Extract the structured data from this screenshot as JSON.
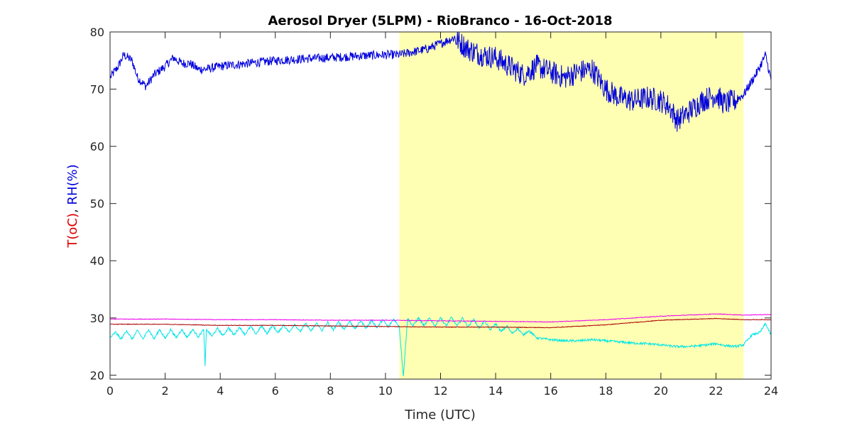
{
  "chart_data": {
    "type": "line",
    "title": "Aerosol Dryer (5LPM) - RioBranco - 16-Oct-2018",
    "xlabel": "Time (UTC)",
    "ylabel_parts": [
      {
        "text": "T(oC)",
        "color": "#dd0000"
      },
      {
        "text": ", ",
        "color": "#262626"
      },
      {
        "text": "RH(%)",
        "color": "#0000dd"
      }
    ],
    "xlim": [
      0,
      24
    ],
    "ylim": [
      19.3,
      80
    ],
    "xticks": [
      0,
      2,
      4,
      6,
      8,
      10,
      12,
      14,
      16,
      18,
      20,
      22,
      24
    ],
    "yticks": [
      20,
      30,
      40,
      50,
      60,
      70,
      80
    ],
    "grid": false,
    "shaded_region": {
      "x_start": 10.5,
      "x_end": 23.0,
      "color": "#ffffb3"
    },
    "series": [
      {
        "color": "#0000dd",
        "noise": 0.8,
        "points": [
          [
            0,
            72
          ],
          [
            0.3,
            74
          ],
          [
            0.5,
            76
          ],
          [
            0.8,
            75
          ],
          [
            1.0,
            72
          ],
          [
            1.3,
            70.5
          ],
          [
            1.6,
            72.5
          ],
          [
            2.0,
            74
          ],
          [
            2.3,
            75.5
          ],
          [
            2.6,
            74.5
          ],
          [
            2.9,
            74.5
          ],
          [
            3.2,
            73.5
          ],
          [
            3.5,
            73.5
          ],
          [
            4.0,
            74
          ],
          [
            5.0,
            74.5
          ],
          [
            6.0,
            75
          ],
          [
            7.0,
            75.3
          ],
          [
            8.0,
            75.5
          ],
          [
            9.0,
            75.8
          ],
          [
            10.0,
            76
          ],
          [
            10.5,
            76
          ],
          [
            11.0,
            76.5
          ],
          [
            11.5,
            77
          ],
          [
            12.0,
            78
          ],
          [
            12.5,
            79
          ],
          [
            13.0,
            77
          ],
          [
            13.5,
            76
          ],
          [
            14.0,
            75.5
          ],
          [
            14.5,
            74
          ],
          [
            15.0,
            72.5
          ],
          [
            15.5,
            74
          ],
          [
            16.0,
            73
          ],
          [
            16.5,
            72
          ],
          [
            17.0,
            73
          ],
          [
            17.5,
            73.5
          ],
          [
            18.0,
            70
          ],
          [
            18.5,
            68.5
          ],
          [
            19.0,
            68
          ],
          [
            19.5,
            68.5
          ],
          [
            20.0,
            68
          ],
          [
            20.3,
            67
          ],
          [
            20.6,
            64.5
          ],
          [
            21.0,
            66
          ],
          [
            21.5,
            68
          ],
          [
            22.0,
            69
          ],
          [
            22.3,
            67.5
          ],
          [
            22.7,
            68
          ],
          [
            23.0,
            69
          ],
          [
            23.5,
            73
          ],
          [
            23.8,
            76
          ],
          [
            24.0,
            71.5
          ]
        ]
      },
      {
        "color": "#00e5e5",
        "noise": 0.2,
        "points": [
          [
            0,
            26.5
          ],
          [
            0.2,
            27.5
          ],
          [
            0.4,
            26.3
          ],
          [
            0.6,
            27.8
          ],
          [
            0.8,
            26.3
          ],
          [
            1.0,
            27.8
          ],
          [
            1.2,
            26.3
          ],
          [
            1.4,
            28
          ],
          [
            1.6,
            26.3
          ],
          [
            1.8,
            28
          ],
          [
            2.0,
            26.4
          ],
          [
            2.2,
            28
          ],
          [
            2.4,
            26.5
          ],
          [
            2.6,
            28
          ],
          [
            2.8,
            26.6
          ],
          [
            3.0,
            28
          ],
          [
            3.2,
            26.7
          ],
          [
            3.4,
            28
          ],
          [
            3.45,
            21.6
          ],
          [
            3.5,
            28
          ],
          [
            3.7,
            26.8
          ],
          [
            3.9,
            28.2
          ],
          [
            4.1,
            26.9
          ],
          [
            4.3,
            28.3
          ],
          [
            4.5,
            27
          ],
          [
            4.7,
            28.4
          ],
          [
            4.9,
            27.1
          ],
          [
            5.1,
            28.5
          ],
          [
            5.3,
            27.2
          ],
          [
            5.5,
            28.6
          ],
          [
            5.7,
            27.3
          ],
          [
            5.9,
            28.7
          ],
          [
            6.1,
            27.4
          ],
          [
            6.3,
            28.8
          ],
          [
            6.5,
            27.5
          ],
          [
            6.7,
            28.9
          ],
          [
            6.9,
            27.6
          ],
          [
            7.1,
            29
          ],
          [
            7.3,
            27.7
          ],
          [
            7.5,
            29.1
          ],
          [
            7.7,
            27.8
          ],
          [
            7.9,
            29.2
          ],
          [
            8.1,
            27.9
          ],
          [
            8.3,
            29.3
          ],
          [
            8.5,
            28
          ],
          [
            8.7,
            29.4
          ],
          [
            8.9,
            28.1
          ],
          [
            9.1,
            29.5
          ],
          [
            9.3,
            28.2
          ],
          [
            9.5,
            29.6
          ],
          [
            9.7,
            28.3
          ],
          [
            9.9,
            29.7
          ],
          [
            10.1,
            28.4
          ],
          [
            10.3,
            29.8
          ],
          [
            10.5,
            28.5
          ],
          [
            10.65,
            19.8
          ],
          [
            10.8,
            29.9
          ],
          [
            11.0,
            28.6
          ],
          [
            11.2,
            30
          ],
          [
            11.4,
            28.6
          ],
          [
            11.6,
            30
          ],
          [
            11.8,
            28.6
          ],
          [
            12.0,
            30.1
          ],
          [
            12.2,
            28.6
          ],
          [
            12.4,
            30.1
          ],
          [
            12.6,
            28.6
          ],
          [
            12.8,
            30
          ],
          [
            13.0,
            28.4
          ],
          [
            13.2,
            29.8
          ],
          [
            13.4,
            28.2
          ],
          [
            13.6,
            29.5
          ],
          [
            13.8,
            27.9
          ],
          [
            14.0,
            29
          ],
          [
            14.2,
            27.6
          ],
          [
            14.4,
            28.6
          ],
          [
            14.6,
            27.3
          ],
          [
            14.8,
            28.2
          ],
          [
            15.0,
            27
          ],
          [
            15.2,
            27.8
          ],
          [
            15.5,
            26.5
          ],
          [
            16.0,
            26.2
          ],
          [
            16.5,
            26
          ],
          [
            17.0,
            26
          ],
          [
            17.5,
            26.2
          ],
          [
            18.0,
            26
          ],
          [
            18.5,
            25.8
          ],
          [
            19.0,
            25.6
          ],
          [
            19.5,
            25.5
          ],
          [
            20.0,
            25.3
          ],
          [
            20.5,
            25
          ],
          [
            21.0,
            25
          ],
          [
            21.5,
            25.2
          ],
          [
            22.0,
            25.5
          ],
          [
            22.3,
            25.2
          ],
          [
            22.7,
            25
          ],
          [
            23.0,
            25.3
          ],
          [
            23.3,
            27
          ],
          [
            23.6,
            27.5
          ],
          [
            23.8,
            29
          ],
          [
            24.0,
            27
          ]
        ]
      },
      {
        "color": "#ee00ee",
        "noise": 0.05,
        "points": [
          [
            0,
            29.8
          ],
          [
            2,
            29.8
          ],
          [
            4,
            29.7
          ],
          [
            6,
            29.7
          ],
          [
            8,
            29.6
          ],
          [
            10,
            29.6
          ],
          [
            12,
            29.5
          ],
          [
            14,
            29.4
          ],
          [
            16,
            29.3
          ],
          [
            18,
            29.7
          ],
          [
            20,
            30.3
          ],
          [
            22,
            30.7
          ],
          [
            23,
            30.5
          ],
          [
            24,
            30.6
          ]
        ]
      },
      {
        "color": "#aa0000",
        "noise": 0.05,
        "points": [
          [
            0,
            28.9
          ],
          [
            2,
            28.9
          ],
          [
            4,
            28.7
          ],
          [
            6,
            28.7
          ],
          [
            8,
            28.6
          ],
          [
            10,
            28.5
          ],
          [
            12,
            28.4
          ],
          [
            14,
            28.4
          ],
          [
            16,
            28.3
          ],
          [
            18,
            28.8
          ],
          [
            20,
            29.6
          ],
          [
            22,
            29.9
          ],
          [
            23,
            29.7
          ],
          [
            24,
            29.7
          ]
        ]
      }
    ]
  }
}
